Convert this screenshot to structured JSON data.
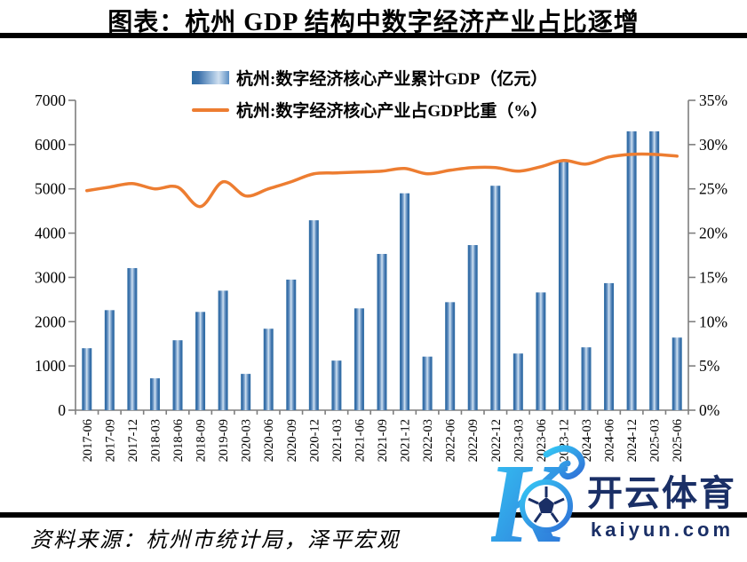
{
  "header": {
    "title": "图表：杭州 GDP 结构中数字经济产业占比逐增"
  },
  "legend": {
    "items": [
      {
        "label": "杭州:数字经济核心产业累计GDP（亿元）",
        "type": "bar"
      },
      {
        "label": "杭州:数字经济核心产业占GDP比重（%）",
        "type": "line"
      }
    ]
  },
  "footer": {
    "source": "资料来源：杭州市统计局，泽平宏观"
  },
  "watermark": {
    "logo_letter": "K",
    "brand": "开云体育",
    "domain": "kaiyun.com"
  },
  "colors": {
    "bar_edge": "#3c71ab",
    "bar_mid": "#9dbddd",
    "bar_center": "#dce7f3",
    "line": "#ed7d31",
    "axis": "#7f7f7f",
    "text": "#000000",
    "watermark_navy": "#1a2f66",
    "watermark_cyan": "#35c8f5",
    "watermark_blue": "#2f6fd6"
  },
  "chart_data": {
    "type": "bar",
    "title": "",
    "xlabel": "",
    "ylabel_left": "亿元",
    "ylabel_right": "%",
    "grid": false,
    "legend_position": "top",
    "categories": [
      "2017-06",
      "2017-09",
      "2017-12",
      "2018-03",
      "2018-06",
      "2018-09",
      "2019-09",
      "2020-03",
      "2020-06",
      "2020-09",
      "2020-12",
      "2021-03",
      "2021-06",
      "2021-09",
      "2021-12",
      "2022-03",
      "2022-06",
      "2022-09",
      "2022-12",
      "2023-03",
      "2023-06",
      "2023-12",
      "2024-03",
      "2024-06",
      "2024-12",
      "2025-03",
      "2025-06"
    ],
    "series": [
      {
        "name": "杭州:数字经济核心产业累计GDP（亿元）",
        "type": "bar",
        "axis": "left",
        "values": [
          1400,
          2260,
          3210,
          720,
          1580,
          2220,
          2700,
          820,
          1840,
          2950,
          4290,
          1120,
          2300,
          3530,
          4900,
          1210,
          2440,
          3730,
          5070,
          1280,
          2660,
          5640,
          1420,
          2870,
          6300,
          6300,
          1640
        ]
      },
      {
        "name": "杭州:数字经济核心产业占GDP比重（%）",
        "type": "line",
        "axis": "right",
        "values": [
          24.8,
          25.2,
          25.6,
          25.0,
          25.2,
          23.0,
          25.8,
          24.2,
          25.0,
          25.8,
          26.7,
          26.8,
          26.9,
          27.0,
          27.3,
          26.7,
          27.1,
          27.4,
          27.4,
          27.0,
          27.5,
          28.2,
          27.8,
          28.6,
          28.9,
          28.9,
          28.7
        ]
      }
    ],
    "y_left": {
      "min": 0,
      "max": 7000,
      "step": 1000
    },
    "y_right": {
      "min": 0,
      "max": 35,
      "step": 5,
      "suffix": "%"
    }
  }
}
